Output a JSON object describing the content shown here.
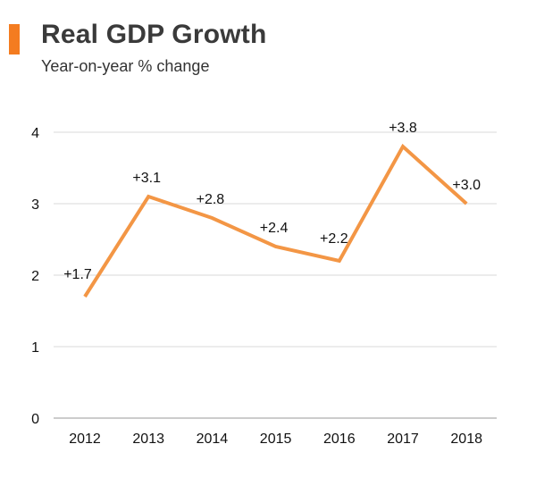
{
  "header": {
    "title": "Real GDP Growth",
    "subtitle": "Year-on-year % change",
    "accent_color": "#f47c20"
  },
  "chart_data": {
    "type": "line",
    "title": "Real GDP Growth",
    "subtitle": "Year-on-year % change",
    "xlabel": "",
    "ylabel": "",
    "categories": [
      "2012",
      "2013",
      "2014",
      "2015",
      "2016",
      "2017",
      "2018"
    ],
    "series": [
      {
        "name": "Real GDP Growth",
        "values": [
          1.7,
          3.1,
          2.8,
          2.4,
          2.2,
          3.8,
          3.0
        ],
        "labels": [
          "+1.7",
          "+3.1",
          "+2.8",
          "+2.4",
          "+2.2",
          "+3.8",
          "+3.0"
        ],
        "color": "#f39645"
      }
    ],
    "ylim": [
      0,
      4
    ],
    "yticks": [
      "0",
      "1",
      "2",
      "3",
      "4"
    ],
    "grid": true,
    "legend": "none"
  }
}
